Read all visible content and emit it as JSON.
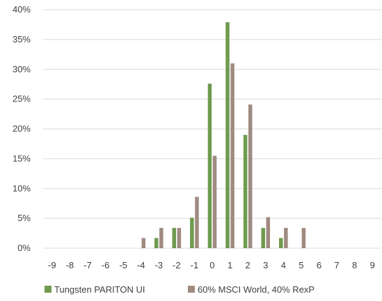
{
  "chart_data": {
    "type": "bar",
    "categories": [
      "-9",
      "-8",
      "-7",
      "-6",
      "-5",
      "-4",
      "-3",
      "-2",
      "-1",
      "0",
      "1",
      "2",
      "3",
      "4",
      "5",
      "6",
      "7",
      "8",
      "9"
    ],
    "series": [
      {
        "name": "Tungsten PARITON UI",
        "color": "#6e9b4e",
        "values": [
          0,
          0,
          0,
          0,
          0,
          0,
          1.7,
          3.4,
          5.1,
          27.6,
          37.9,
          19.0,
          3.4,
          1.7,
          0,
          0,
          0,
          0,
          0
        ]
      },
      {
        "name": "60% MSCI World, 40% RexP",
        "color": "#a08a80",
        "values": [
          0,
          0,
          0,
          0,
          0,
          1.7,
          3.4,
          3.4,
          8.6,
          15.5,
          31.0,
          24.1,
          5.2,
          3.4,
          3.4,
          0,
          0,
          0,
          0
        ]
      }
    ],
    "y_ticks": [
      "0%",
      "5%",
      "10%",
      "15%",
      "20%",
      "25%",
      "30%",
      "35%",
      "40%"
    ],
    "ylim": [
      0,
      40
    ],
    "grid": true,
    "legend_position": "bottom"
  }
}
